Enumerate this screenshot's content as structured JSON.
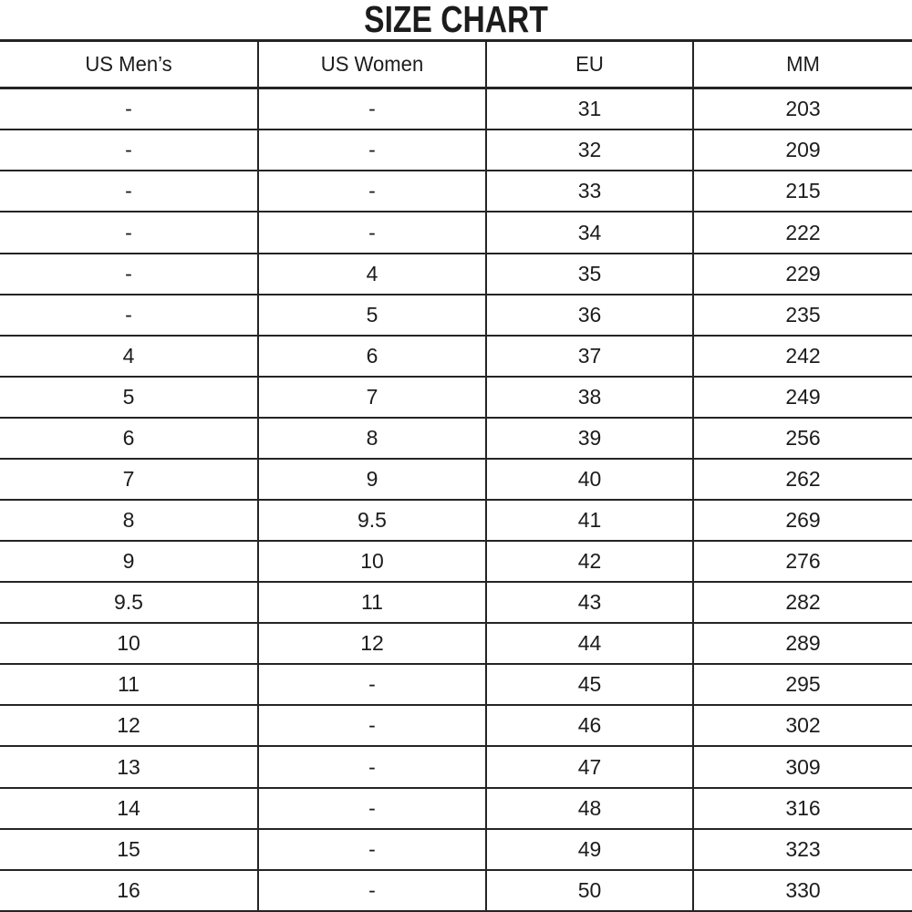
{
  "chart_data": {
    "type": "table",
    "title": "SIZE CHART",
    "columns": [
      "US Men’s",
      "US Women",
      "EU",
      "MM"
    ],
    "rows": [
      [
        "-",
        "-",
        "31",
        "203"
      ],
      [
        "-",
        "-",
        "32",
        "209"
      ],
      [
        "-",
        "-",
        "33",
        "215"
      ],
      [
        "-",
        "-",
        "34",
        "222"
      ],
      [
        "-",
        "4",
        "35",
        "229"
      ],
      [
        "-",
        "5",
        "36",
        "235"
      ],
      [
        "4",
        "6",
        "37",
        "242"
      ],
      [
        "5",
        "7",
        "38",
        "249"
      ],
      [
        "6",
        "8",
        "39",
        "256"
      ],
      [
        "7",
        "9",
        "40",
        "262"
      ],
      [
        "8",
        "9.5",
        "41",
        "269"
      ],
      [
        "9",
        "10",
        "42",
        "276"
      ],
      [
        "9.5",
        "11",
        "43",
        "282"
      ],
      [
        "10",
        "12",
        "44",
        "289"
      ],
      [
        "11",
        "-",
        "45",
        "295"
      ],
      [
        "12",
        "-",
        "46",
        "302"
      ],
      [
        "13",
        "-",
        "47",
        "309"
      ],
      [
        "14",
        "-",
        "48",
        "316"
      ],
      [
        "15",
        "-",
        "49",
        "323"
      ],
      [
        "16",
        "-",
        "50",
        "330"
      ]
    ],
    "layout": {
      "grid": "horizontal-and-vertical-rules",
      "outer_side_borders": false,
      "line_color": "#242424",
      "background": "#ffffff",
      "text_color": "#1c1c1c"
    }
  }
}
